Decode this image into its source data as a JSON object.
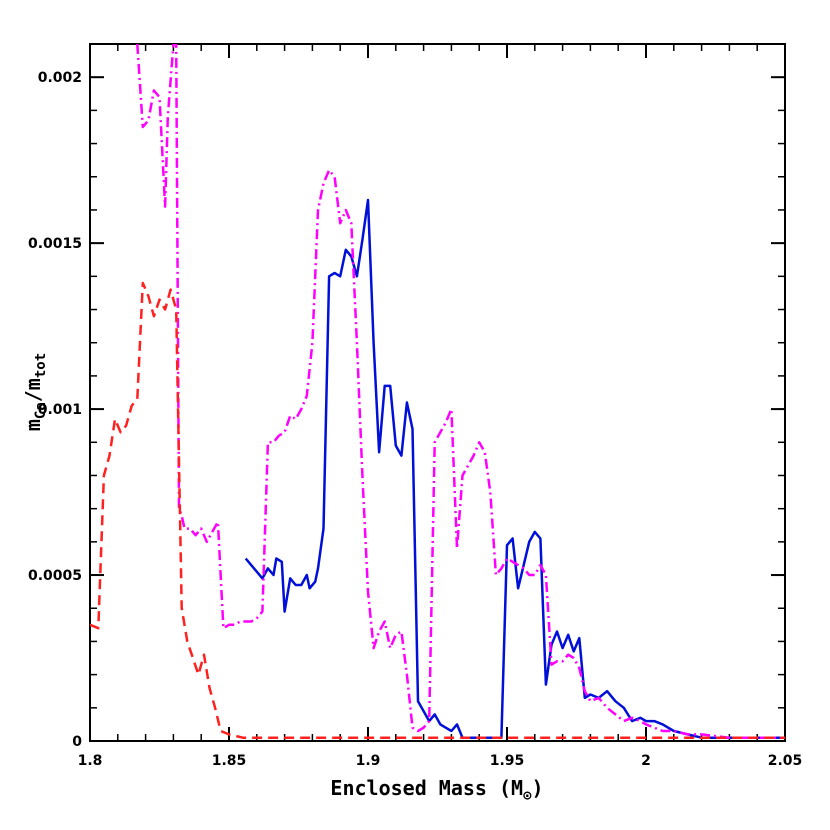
{
  "chart_data": {
    "type": "line",
    "xlabel": "Enclosed Mass (M",
    "xlabel_symbol": "⊙",
    "xlabel_suffix": ")",
    "ylabel_main": "m",
    "ylabel_sub1": "Ca",
    "ylabel_sep": "/m",
    "ylabel_sub2": "tot",
    "xlim": [
      1.8,
      2.05
    ],
    "ylim": [
      0,
      0.0021
    ],
    "x_ticks": [
      {
        "value": 1.8,
        "label": "1.8"
      },
      {
        "value": 1.85,
        "label": "1.85"
      },
      {
        "value": 1.9,
        "label": "1.9"
      },
      {
        "value": 1.95,
        "label": "1.95"
      },
      {
        "value": 2.0,
        "label": "2"
      },
      {
        "value": 2.05,
        "label": "2.05"
      }
    ],
    "y_ticks": [
      {
        "value": 0,
        "label": "0"
      },
      {
        "value": 0.0005,
        "label": "0.0005"
      },
      {
        "value": 0.001,
        "label": "0.001"
      },
      {
        "value": 0.0015,
        "label": "0.0015"
      },
      {
        "value": 0.002,
        "label": "0.002"
      }
    ],
    "grid": false,
    "series": [
      {
        "style": "solid",
        "color": "#0010d8",
        "x": [
          1.856,
          1.858,
          1.86,
          1.862,
          1.864,
          1.866,
          1.867,
          1.869,
          1.87,
          1.872,
          1.873,
          1.874,
          1.876,
          1.878,
          1.879,
          1.881,
          1.882,
          1.884,
          1.886,
          1.888,
          1.89,
          1.892,
          1.894,
          1.896,
          1.898,
          1.9,
          1.902,
          1.904,
          1.906,
          1.908,
          1.91,
          1.912,
          1.914,
          1.916,
          1.918,
          1.92,
          1.922,
          1.924,
          1.926,
          1.928,
          1.93,
          1.932,
          1.934,
          1.936,
          1.938,
          1.94,
          1.942,
          1.944,
          1.946,
          1.948,
          1.95,
          1.952,
          1.954,
          1.956,
          1.958,
          1.96,
          1.962,
          1.964,
          1.966,
          1.968,
          1.97,
          1.972,
          1.974,
          1.976,
          1.978,
          1.98,
          1.983,
          1.986,
          1.989,
          1.992,
          1.995,
          1.998,
          2.0,
          2.003,
          2.006,
          2.01,
          2.015,
          2.02,
          2.03,
          2.04,
          2.05
        ],
        "y": [
          0.00055,
          0.00053,
          0.00051,
          0.00049,
          0.00052,
          0.0005,
          0.00055,
          0.00054,
          0.00039,
          0.00049,
          0.00048,
          0.00047,
          0.00047,
          0.0005,
          0.00046,
          0.00048,
          0.00052,
          0.00064,
          0.0014,
          0.00141,
          0.0014,
          0.00148,
          0.00146,
          0.0014,
          0.00151,
          0.00163,
          0.0012,
          0.00087,
          0.00107,
          0.00107,
          0.00089,
          0.00086,
          0.00102,
          0.00094,
          0.00012,
          9e-05,
          6e-05,
          8e-05,
          5e-05,
          4e-05,
          3e-05,
          5e-05,
          1e-05,
          1e-05,
          1e-05,
          1e-05,
          1e-05,
          1e-05,
          1e-05,
          1e-05,
          0.00059,
          0.00061,
          0.00046,
          0.00053,
          0.0006,
          0.00063,
          0.00061,
          0.00017,
          0.00029,
          0.00033,
          0.00028,
          0.00032,
          0.00027,
          0.00031,
          0.00013,
          0.00014,
          0.00013,
          0.00015,
          0.00012,
          0.0001,
          6e-05,
          7e-05,
          6e-05,
          6e-05,
          5e-05,
          3e-05,
          2e-05,
          1e-05,
          1e-05,
          1e-05,
          1e-05
        ]
      },
      {
        "style": "dashdot",
        "color": "#ff00ff",
        "x": [
          1.817,
          1.819,
          1.821,
          1.823,
          1.825,
          1.827,
          1.828,
          1.83,
          1.831,
          1.832,
          1.833,
          1.834,
          1.836,
          1.838,
          1.84,
          1.842,
          1.844,
          1.846,
          1.848,
          1.85,
          1.852,
          1.854,
          1.856,
          1.858,
          1.86,
          1.862,
          1.864,
          1.866,
          1.868,
          1.87,
          1.872,
          1.874,
          1.876,
          1.878,
          1.88,
          1.882,
          1.884,
          1.886,
          1.888,
          1.89,
          1.892,
          1.894,
          1.896,
          1.898,
          1.9,
          1.902,
          1.904,
          1.906,
          1.908,
          1.91,
          1.912,
          1.914,
          1.916,
          1.918,
          1.92,
          1.922,
          1.924,
          1.926,
          1.928,
          1.93,
          1.932,
          1.934,
          1.936,
          1.938,
          1.94,
          1.942,
          1.944,
          1.946,
          1.948,
          1.95,
          1.952,
          1.954,
          1.956,
          1.958,
          1.96,
          1.962,
          1.964,
          1.966,
          1.968,
          1.97,
          1.972,
          1.974,
          1.976,
          1.978,
          1.98,
          1.983,
          1.986,
          1.989,
          1.992,
          1.995,
          1.998,
          2.0,
          2.003,
          2.006,
          2.01,
          2.015,
          2.02,
          2.03,
          2.04,
          2.05
        ],
        "y": [
          0.0021,
          0.00185,
          0.00187,
          0.00196,
          0.00194,
          0.00161,
          0.00188,
          0.0021,
          0.0021,
          0.0007,
          0.00068,
          0.00064,
          0.00064,
          0.00062,
          0.00064,
          0.0006,
          0.00063,
          0.00066,
          0.00034,
          0.00035,
          0.00035,
          0.00036,
          0.00036,
          0.00036,
          0.00037,
          0.00039,
          0.0009,
          0.0009,
          0.00092,
          0.00093,
          0.00098,
          0.00097,
          0.001,
          0.00104,
          0.0012,
          0.0016,
          0.00168,
          0.00172,
          0.0017,
          0.00156,
          0.0016,
          0.00156,
          0.0012,
          0.0008,
          0.00045,
          0.00028,
          0.00033,
          0.00036,
          0.00028,
          0.00032,
          0.00033,
          0.0002,
          4e-05,
          3e-05,
          4e-05,
          6e-05,
          0.0009,
          0.00093,
          0.00096,
          0.001,
          0.00058,
          0.0008,
          0.00083,
          0.00086,
          0.0009,
          0.00087,
          0.00075,
          0.0005,
          0.00052,
          0.00055,
          0.00054,
          0.00053,
          0.00052,
          0.0005,
          0.0005,
          0.00053,
          0.0005,
          0.00023,
          0.00024,
          0.00024,
          0.00026,
          0.00025,
          0.00022,
          0.00015,
          0.00012,
          0.00013,
          0.0001,
          8e-05,
          6e-05,
          7e-05,
          6e-05,
          5e-05,
          4e-05,
          3e-05,
          3e-05,
          2e-05,
          2e-05,
          1e-05,
          1e-05,
          1e-05
        ]
      },
      {
        "style": "dashed",
        "color": "#ff2020",
        "x": [
          1.8,
          1.803,
          1.805,
          1.807,
          1.809,
          1.811,
          1.813,
          1.815,
          1.817,
          1.819,
          1.821,
          1.823,
          1.825,
          1.827,
          1.829,
          1.831,
          1.833,
          1.835,
          1.837,
          1.839,
          1.841,
          1.843,
          1.845,
          1.847,
          1.85,
          1.855,
          1.86,
          1.87,
          1.88,
          1.9,
          1.95,
          2.0,
          2.05
        ],
        "y": [
          0.00035,
          0.00034,
          0.0008,
          0.00086,
          0.00097,
          0.00093,
          0.00095,
          0.00101,
          0.00103,
          0.00138,
          0.00134,
          0.00128,
          0.00133,
          0.0013,
          0.00136,
          0.0013,
          0.0004,
          0.0003,
          0.00025,
          0.0002,
          0.00026,
          0.00016,
          0.0001,
          3e-05,
          2e-05,
          1e-05,
          1e-05,
          1e-05,
          1e-05,
          1e-05,
          1e-05,
          1e-05,
          1e-05
        ]
      }
    ]
  }
}
